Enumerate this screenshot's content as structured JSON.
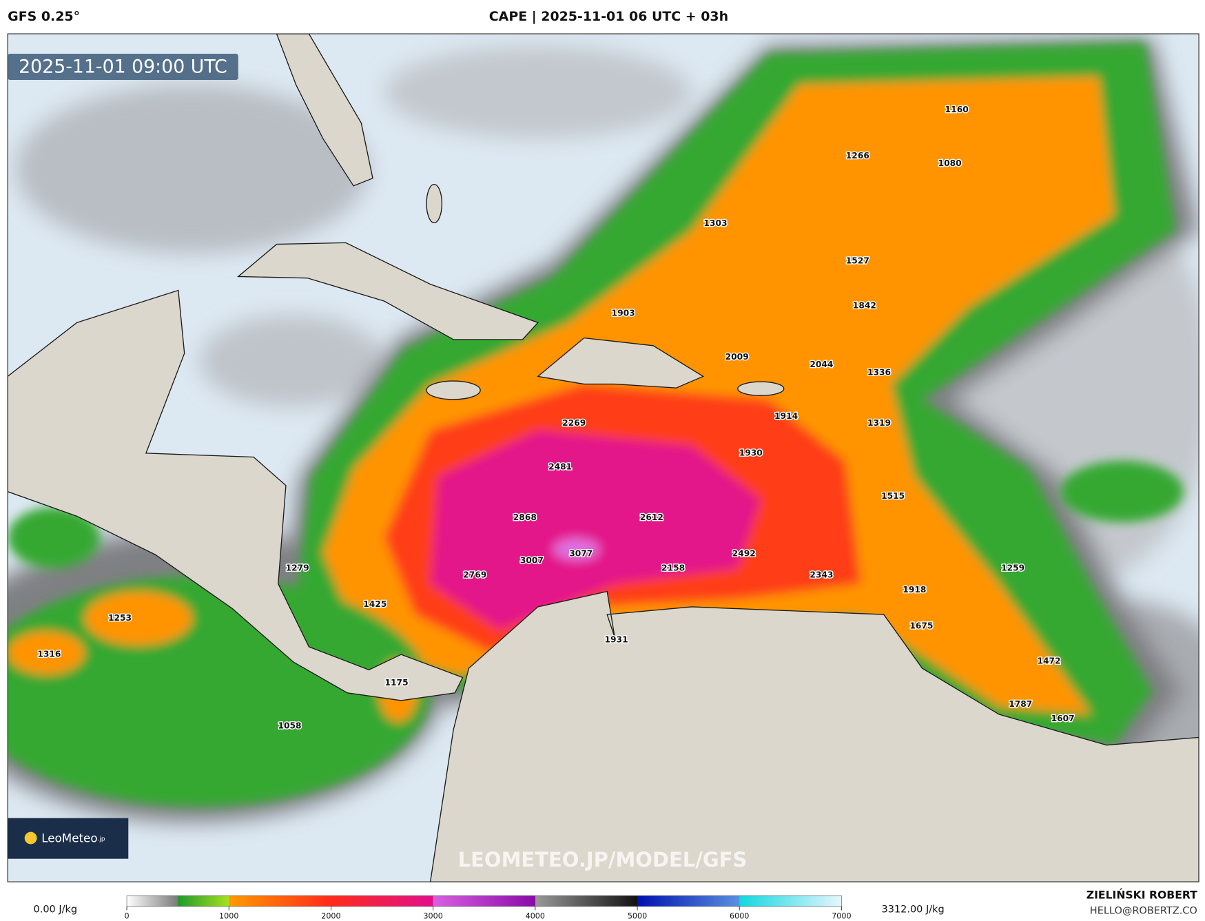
{
  "header": {
    "model": "GFS 0.25°",
    "title": "CAPE | 2025-11-01 06 UTC + 03h"
  },
  "map": {
    "timestamp": "2025-11-01 09:00 UTC",
    "watermark": "LEOMETEO.JP/MODEL/GFS",
    "logo": {
      "name": "LeoMeteo",
      "suffix": ".jp"
    },
    "value_labels": [
      1160,
      1266,
      1080,
      1303,
      1527,
      1903,
      1842,
      2009,
      2044,
      1336,
      1914,
      2269,
      1319,
      1930,
      2481,
      1515,
      2868,
      2612,
      2492,
      3007,
      3077,
      2158,
      1279,
      2769,
      2343,
      1259,
      1918,
      1425,
      1253,
      1675,
      1931,
      1316,
      1472,
      1175,
      1787,
      1607,
      1058
    ]
  },
  "legend": {
    "min_label": "0.00 J/kg",
    "max_label": "3312.00 J/kg",
    "range": [
      0,
      7000
    ],
    "ticks": [
      0,
      1000,
      2000,
      3000,
      4000,
      5000,
      6000,
      7000
    ],
    "stops": [
      {
        "value": 0,
        "color": "#ffffff"
      },
      {
        "value": 500,
        "color": "#7a7a7a"
      },
      {
        "value": 501,
        "color": "#1f9a2a"
      },
      {
        "value": 1000,
        "color": "#a6e020"
      },
      {
        "value": 1001,
        "color": "#ff9a00"
      },
      {
        "value": 2000,
        "color": "#ff2a1a"
      },
      {
        "value": 3000,
        "color": "#e0108a"
      },
      {
        "value": 3001,
        "color": "#d860e0"
      },
      {
        "value": 4000,
        "color": "#8a0aa8"
      },
      {
        "value": 4001,
        "color": "#999999"
      },
      {
        "value": 5000,
        "color": "#111111"
      },
      {
        "value": 5001,
        "color": "#0010b0"
      },
      {
        "value": 6000,
        "color": "#5a90e0"
      },
      {
        "value": 6001,
        "color": "#10d8e0"
      },
      {
        "value": 7000,
        "color": "#e6f6ff"
      }
    ]
  },
  "footer": {
    "author": "ZIELIŃSKI ROBERT",
    "contact": "HELLO@ROBERTZ.CO"
  }
}
